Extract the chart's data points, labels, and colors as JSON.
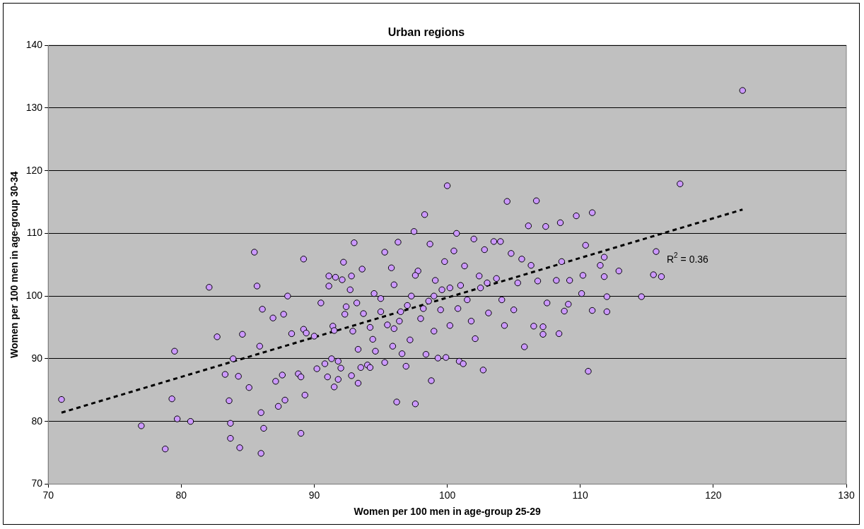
{
  "chart_data": {
    "type": "scatter",
    "title": "Urban regions",
    "xlabel": "Women per 100 men in age-group 25-29",
    "ylabel": "Women per 100 men in age-group 30-34",
    "xlim": [
      70,
      130
    ],
    "xticks": [
      70,
      80,
      90,
      100,
      110,
      120,
      130
    ],
    "ylim": [
      70,
      140
    ],
    "yticks": [
      70,
      80,
      90,
      100,
      110,
      120,
      130,
      140
    ],
    "grid": "y",
    "legend": false,
    "marker": "circle",
    "series": [
      {
        "color": "#cc99ff",
        "x": [
          71.0,
          77.0,
          78.8,
          79.3,
          79.5,
          79.7,
          80.7,
          82.1,
          82.7,
          83.3,
          83.6,
          83.7,
          83.7,
          83.9,
          84.3,
          84.4,
          84.6,
          85.1,
          85.5,
          85.7,
          85.9,
          86.0,
          86.0,
          86.1,
          86.2,
          86.9,
          87.1,
          87.3,
          87.6,
          87.7,
          87.8,
          88.0,
          88.3,
          88.8,
          89.0,
          89.0,
          89.2,
          89.2,
          89.3,
          89.4,
          90.0,
          90.2,
          90.5,
          90.8,
          91.0,
          91.1,
          91.1,
          91.3,
          91.4,
          91.5,
          91.5,
          91.6,
          91.8,
          91.8,
          92.0,
          92.1,
          92.2,
          92.3,
          92.4,
          92.7,
          92.8,
          92.8,
          92.9,
          93.0,
          93.2,
          93.3,
          93.3,
          93.5,
          93.6,
          93.7,
          94.0,
          94.2,
          94.4,
          94.5,
          94.6,
          95.0,
          95.3,
          95.3,
          95.5,
          95.8,
          95.9,
          96.0,
          96.3,
          96.2,
          96.5,
          96.6,
          96.9,
          97.2,
          97.3,
          97.5,
          97.6,
          97.8,
          98.0,
          98.3,
          98.4,
          98.6,
          98.7,
          98.8,
          99.0,
          99.1,
          99.3,
          99.5,
          99.8,
          99.9,
          100.0,
          100.2,
          100.5,
          100.7,
          100.9,
          101.2,
          101.3,
          101.5,
          101.8,
          102.0,
          102.1,
          102.5,
          102.7,
          102.8,
          103.1,
          103.5,
          103.7,
          104.0,
          104.1,
          104.3,
          104.5,
          104.8,
          105.0,
          105.3,
          105.6,
          105.8,
          106.1,
          106.3,
          106.5,
          106.7,
          106.8,
          107.2,
          107.2,
          107.4,
          107.5,
          108.2,
          108.4,
          108.5,
          108.6,
          108.8,
          109.1,
          109.2,
          109.7,
          110.1,
          110.2,
          110.4,
          110.6,
          110.9,
          110.9,
          111.5,
          111.8,
          111.8,
          112.0,
          112.0,
          112.9,
          114.6,
          115.5,
          115.7,
          116.1,
          117.5,
          122.2,
          97.0,
          98.2,
          99.6,
          100.8,
          101.0,
          102.4,
          96.4,
          95.0,
          94.2,
          99.0,
          103.0,
          100.2,
          97.6,
          96.0
        ],
        "values": [
          83.5,
          79.3,
          75.6,
          83.6,
          91.2,
          80.4,
          80.0,
          101.4,
          93.5,
          87.5,
          83.3,
          79.7,
          77.3,
          90.0,
          87.2,
          75.8,
          93.9,
          85.4,
          107.0,
          101.6,
          92.0,
          81.4,
          74.9,
          97.9,
          78.9,
          96.5,
          86.4,
          82.4,
          87.4,
          97.1,
          83.4,
          100.0,
          94.0,
          87.6,
          78.1,
          87.1,
          94.7,
          105.9,
          84.2,
          94.1,
          93.6,
          88.4,
          98.9,
          89.2,
          87.1,
          101.6,
          103.2,
          90.0,
          95.2,
          85.5,
          94.5,
          103.0,
          86.7,
          89.6,
          88.5,
          102.6,
          105.4,
          97.1,
          98.3,
          101.0,
          103.2,
          87.3,
          94.4,
          108.5,
          98.9,
          86.1,
          91.5,
          88.6,
          104.3,
          97.2,
          89.0,
          88.6,
          93.1,
          100.4,
          91.2,
          99.6,
          107.0,
          89.4,
          95.4,
          104.5,
          92.0,
          101.8,
          108.6,
          83.1,
          97.5,
          90.8,
          88.8,
          93.0,
          100.0,
          110.3,
          82.8,
          104.0,
          96.4,
          113.0,
          90.7,
          99.2,
          108.3,
          86.5,
          94.4,
          102.5,
          90.1,
          97.8,
          105.5,
          90.2,
          117.6,
          101.3,
          107.2,
          110.0,
          89.6,
          89.2,
          104.8,
          99.4,
          96.0,
          109.1,
          93.2,
          101.3,
          88.2,
          107.4,
          97.3,
          108.7,
          102.8,
          108.7,
          99.4,
          95.3,
          115.1,
          106.8,
          97.8,
          102.1,
          105.9,
          91.9,
          111.2,
          104.9,
          95.2,
          115.2,
          102.4,
          93.9,
          95.1,
          111.1,
          98.9,
          102.5,
          94.0,
          111.7,
          105.5,
          97.6,
          98.7,
          102.5,
          112.8,
          100.4,
          103.3,
          108.1,
          88.0,
          113.3,
          97.7,
          104.9,
          106.2,
          103.1,
          99.9,
          97.5,
          104.0,
          99.9,
          103.4,
          107.1,
          103.1,
          117.9,
          132.8,
          98.5,
          98.0,
          101.0,
          98.0,
          101.7,
          103.2,
          96.0,
          97.5,
          95.0,
          100.0,
          102.1,
          95.3,
          103.3,
          94.8
        ]
      },
      {
        "type": "line",
        "color": "#000000",
        "line_style": "dashed",
        "marker": "none",
        "x": [
          71.0,
          122.2
        ],
        "values": [
          81.4,
          113.8
        ]
      }
    ],
    "annotations": [
      "R$^{2}$ = 0.36"
    ]
  }
}
